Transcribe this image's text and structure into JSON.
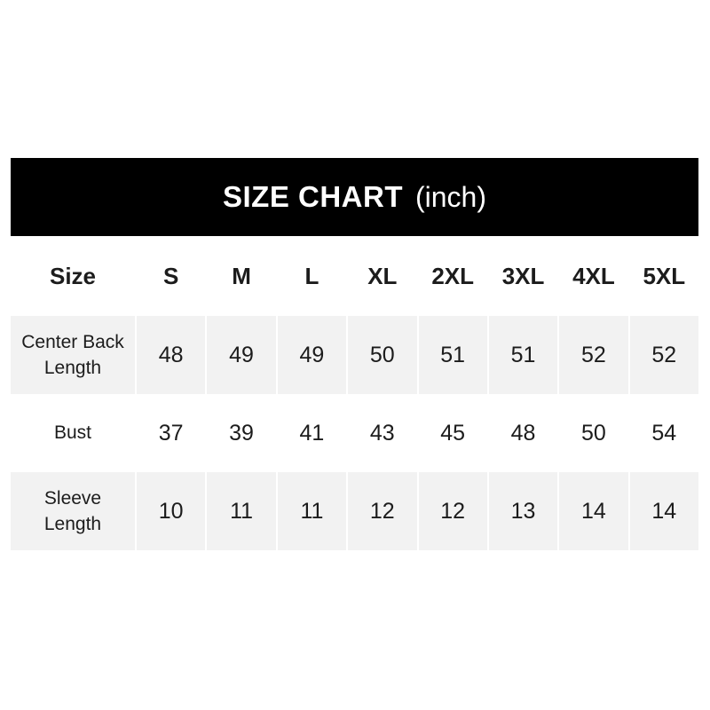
{
  "banner": {
    "title": "SIZE CHART",
    "unit": "(inch)"
  },
  "colors": {
    "banner_bg": "#000000",
    "banner_text": "#ffffff",
    "stripe_bg": "#f2f2f2",
    "separator": "#ffffff",
    "text": "#1c1c1c"
  },
  "chart_data": {
    "type": "table",
    "title": "SIZE CHART",
    "unit_label": "(inch)",
    "columns": [
      "Size",
      "S",
      "M",
      "L",
      "XL",
      "2XL",
      "3XL",
      "4XL",
      "5XL"
    ],
    "rows": [
      {
        "label": "Center Back Length",
        "values": [
          48,
          49,
          49,
          50,
          51,
          51,
          52,
          52
        ]
      },
      {
        "label": "Bust",
        "values": [
          37,
          39,
          41,
          43,
          45,
          48,
          50,
          54
        ]
      },
      {
        "label": "Sleeve Length",
        "values": [
          10,
          11,
          11,
          12,
          12,
          13,
          14,
          14
        ]
      }
    ]
  }
}
